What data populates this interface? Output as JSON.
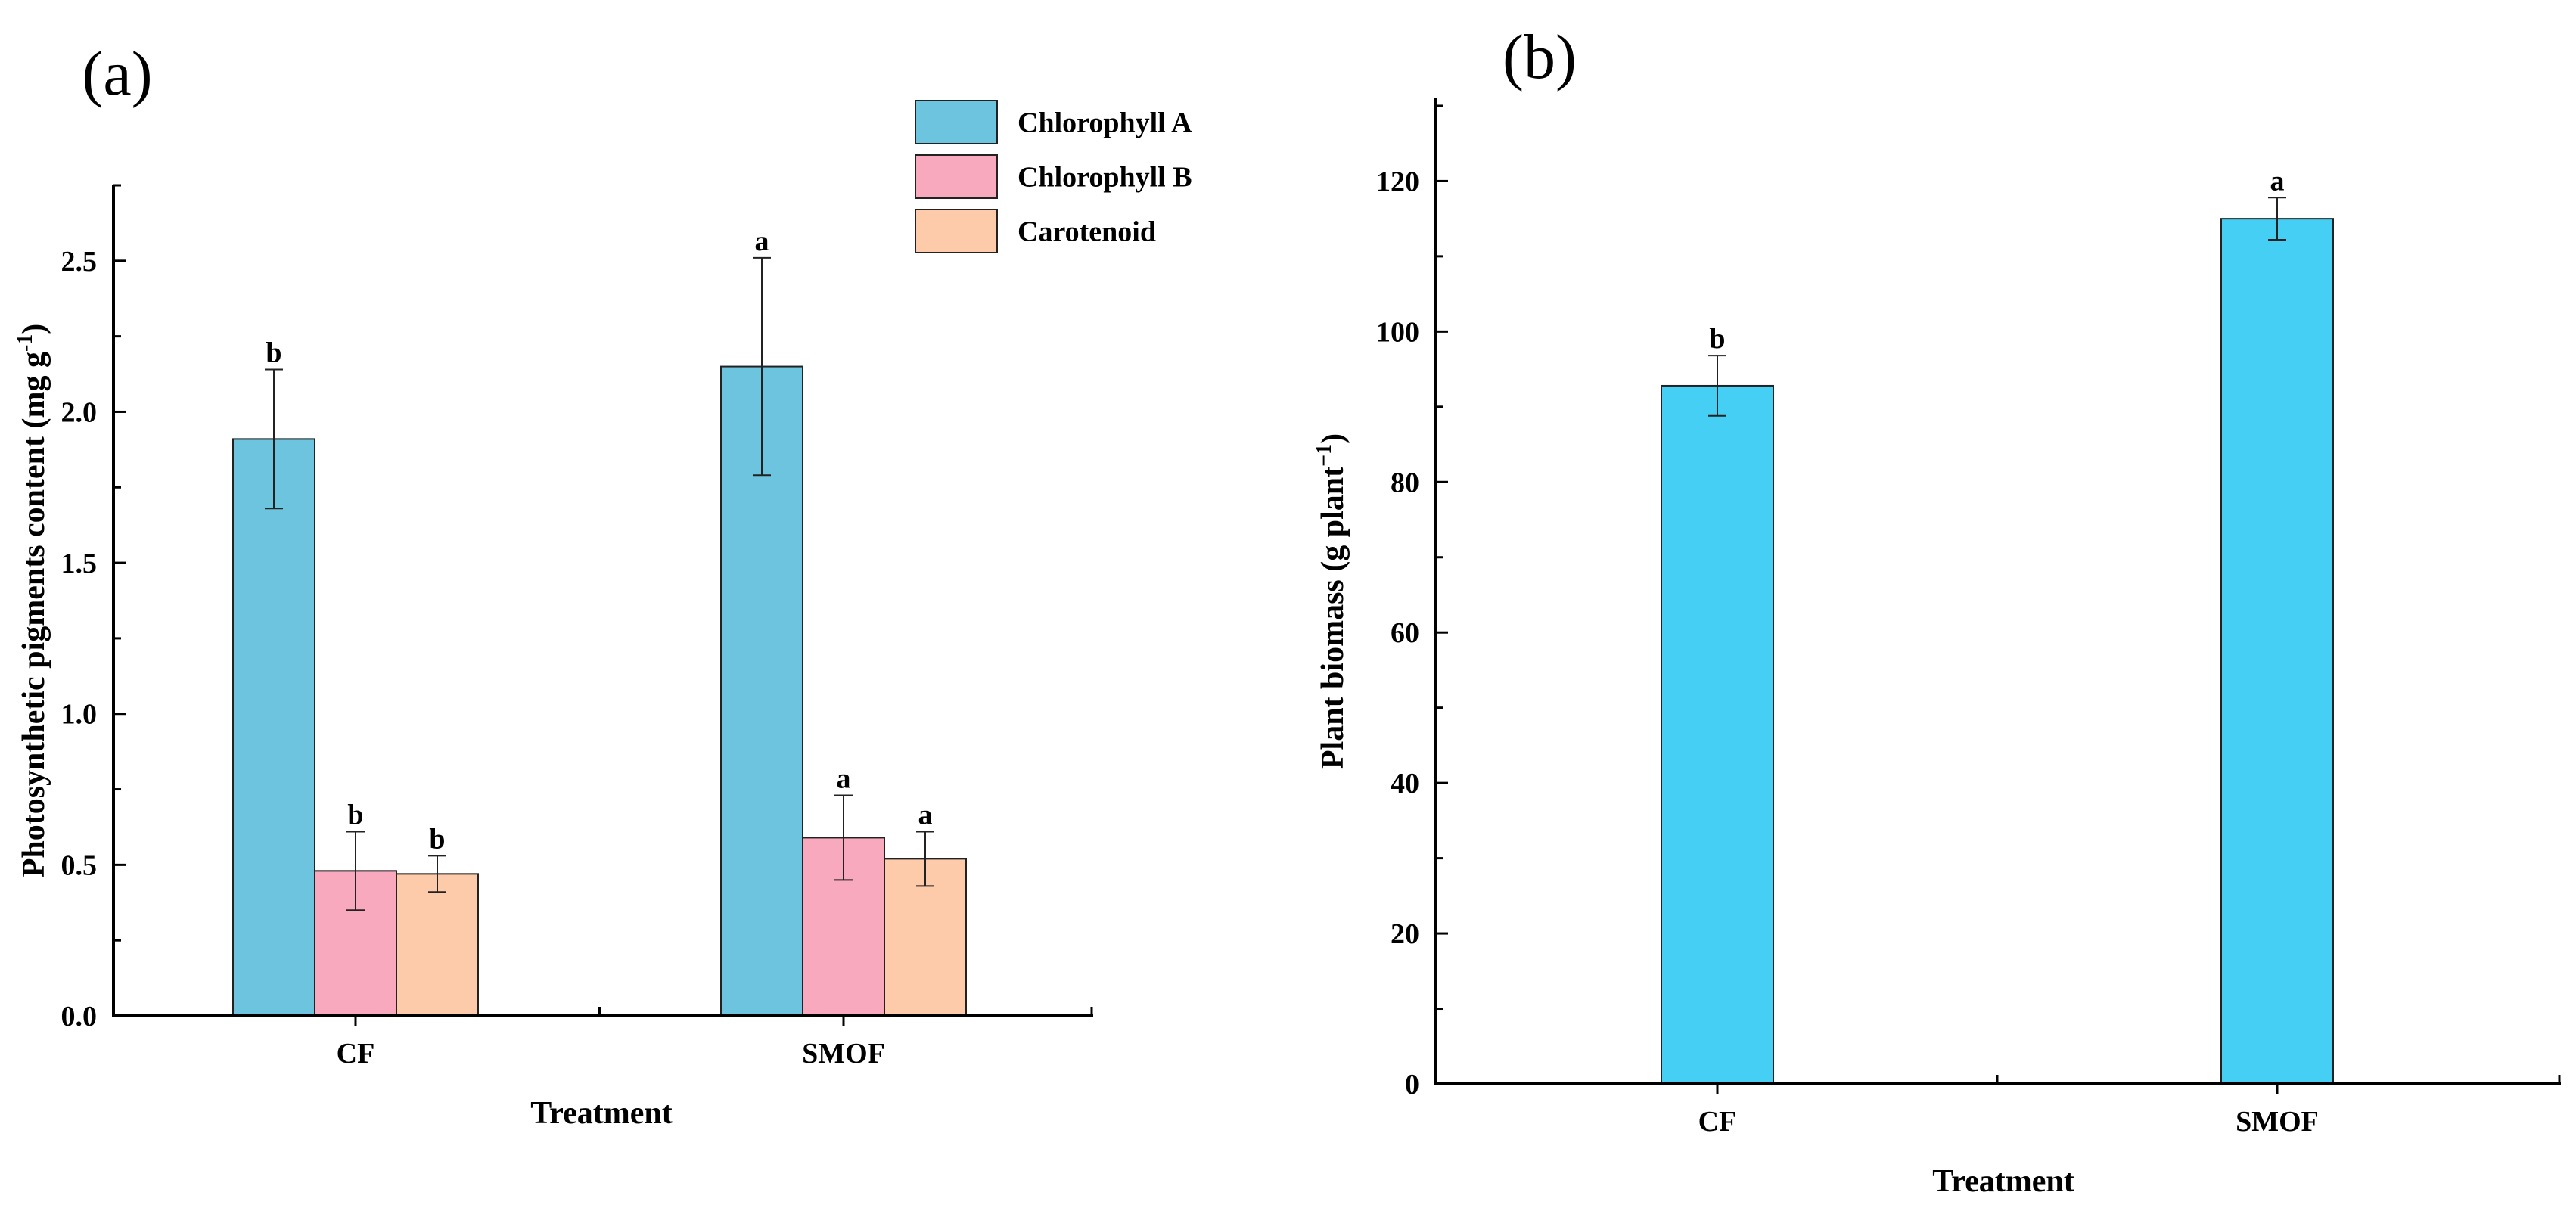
{
  "colors": {
    "chlorophyll_a": "#6cc4df",
    "chlorophyll_b": "#f9a9be",
    "carotenoid": "#fdcbaa",
    "biomass": "#45cff5"
  },
  "chart_data": [
    {
      "type": "bar",
      "panel_label": "(a)",
      "categories": [
        "CF",
        "SMOF"
      ],
      "xlabel": "Treatment",
      "ylabel": "Photosynthetic pigments content (mg g",
      "ylabel_superscript": "-1",
      "ylabel_suffix": ")",
      "ylim": [
        0,
        2.75
      ],
      "y_ticks": [
        0.0,
        0.5,
        1.0,
        1.5,
        2.0,
        2.5
      ],
      "y_tick_labels": [
        "0.0",
        "0.5",
        "1.0",
        "1.5",
        "2.0",
        "2.5"
      ],
      "grid": false,
      "legend_position": "top-right",
      "series": [
        {
          "name": "Chlorophyll A",
          "color": "#6cc4df",
          "values": [
            1.91,
            2.15
          ],
          "errors": [
            0.23,
            0.36
          ],
          "letters": [
            "b",
            "a"
          ]
        },
        {
          "name": "Chlorophyll B",
          "color": "#f9a9be",
          "values": [
            0.48,
            0.59
          ],
          "errors": [
            0.13,
            0.14
          ],
          "letters": [
            "b",
            "a"
          ]
        },
        {
          "name": "Carotenoid",
          "color": "#fdcbaa",
          "values": [
            0.47,
            0.52
          ],
          "errors": [
            0.06,
            0.09
          ],
          "letters": [
            "b",
            "a"
          ]
        }
      ]
    },
    {
      "type": "bar",
      "panel_label": "(b)",
      "categories": [
        "CF",
        "SMOF"
      ],
      "xlabel": "Treatment",
      "ylabel": "Plant biomass (g plant",
      "ylabel_superscript": "−1",
      "ylabel_suffix": ")",
      "ylim": [
        0,
        131
      ],
      "y_ticks": [
        0,
        20,
        40,
        60,
        80,
        100,
        120
      ],
      "y_tick_labels": [
        "0",
        "20",
        "40",
        "60",
        "80",
        "100",
        "120"
      ],
      "grid": false,
      "legend_position": "none",
      "series": [
        {
          "color": "#45cff5",
          "values": [
            92.8,
            115.0
          ],
          "errors": [
            4.0,
            2.8
          ],
          "letters": [
            "b",
            "a"
          ]
        }
      ]
    }
  ]
}
